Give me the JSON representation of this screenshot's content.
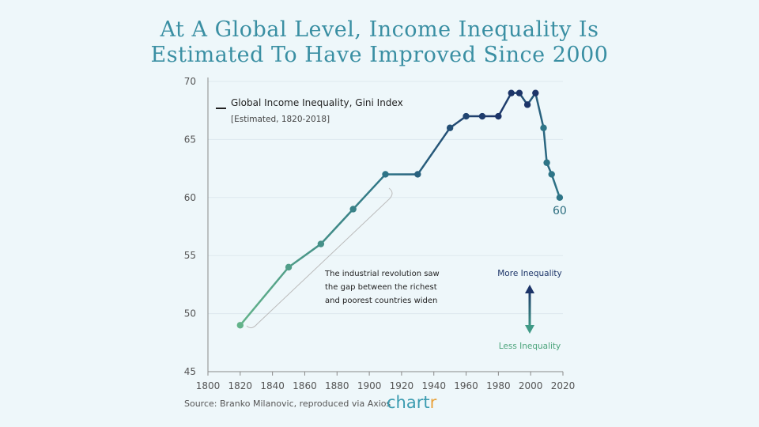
{
  "title_line1": "At A Global Level, Income Inequality Is",
  "title_line2": "Estimated To Have Improved Since 2000",
  "legend": {
    "label": "Global Income Inequality, Gini Index",
    "sublabel": "[Estimated, 1820-2018]"
  },
  "annotation": [
    "The industrial revolution saw",
    "the gap between the richest",
    "and poorest countries widen"
  ],
  "arrow_labels": {
    "up": "More Inequality",
    "down": "Less Inequality"
  },
  "source": "Source: Branko Milanovic, reproduced via Axios",
  "logo": "chartr",
  "colors": {
    "start": "#63b38a",
    "mid": "#2e7587",
    "end": "#1c3468",
    "title": "#3a8fa3"
  },
  "chart_data": {
    "type": "line",
    "x": [
      1820,
      1850,
      1870,
      1890,
      1910,
      1930,
      1950,
      1960,
      1970,
      1980,
      1988,
      1993,
      1998,
      2003,
      2008,
      2010,
      2013,
      2018
    ],
    "series": [
      {
        "name": "Global Income Inequality, Gini Index",
        "values": [
          49,
          54,
          56,
          59,
          62,
          62,
          66,
          67,
          67,
          67,
          69,
          69,
          68,
          69,
          66,
          63,
          62,
          60
        ]
      }
    ],
    "xlim": [
      1800,
      2020
    ],
    "ylim": [
      45,
      70
    ],
    "xticks": [
      "1800",
      "1820",
      "1840",
      "1860",
      "1880",
      "1900",
      "1920",
      "1940",
      "1960",
      "1980",
      "2000",
      "2020"
    ],
    "yticks": [
      "45",
      "50",
      "55",
      "60",
      "65",
      "70"
    ],
    "end_label": "60",
    "grid": true
  }
}
